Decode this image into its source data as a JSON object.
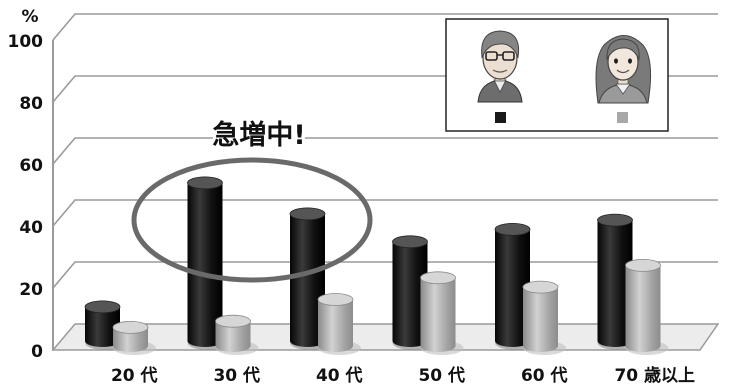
{
  "chart_data": {
    "type": "bar",
    "unit_label": "%",
    "categories": [
      "20 代",
      "30 代",
      "40 代",
      "50 代",
      "60 代",
      "70 歳以上"
    ],
    "y_ticks": [
      "0",
      "20",
      "40",
      "60",
      "80",
      "100"
    ],
    "ylim": [
      0,
      100
    ],
    "grid": true,
    "legend_position": "top-right",
    "series": [
      {
        "color": "#1a1a1a",
        "values": [
          11,
          51,
          41,
          32,
          36,
          39
        ]
      },
      {
        "color": "#a8a8a8",
        "values": [
          6,
          8,
          15,
          22,
          19,
          26
        ]
      }
    ],
    "annotation": {
      "text": "急増中!",
      "target_category": "30 代"
    }
  },
  "legend": {
    "items": [
      {
        "icon": "male-avatar-icon",
        "swatch_color": "#1a1a1a"
      },
      {
        "icon": "female-avatar-icon",
        "swatch_color": "#a8a8a8"
      }
    ]
  }
}
